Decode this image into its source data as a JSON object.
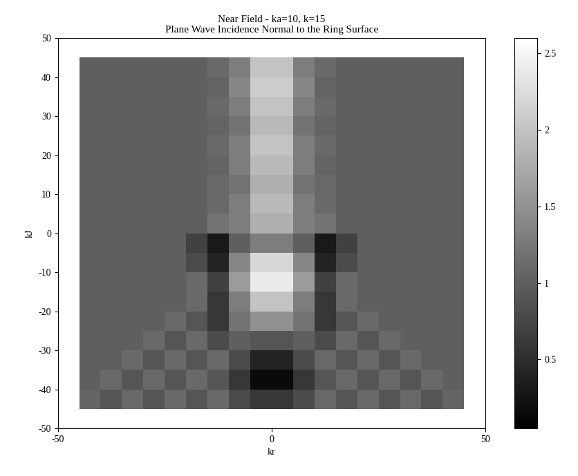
{
  "chart_data": {
    "type": "heatmap",
    "title": "Near Field - ka=10, k=15\nPlane Wave Incidence Normal to the Ring Surface",
    "x_label": "kr",
    "y_label": "kJ",
    "x_edges": [
      -45,
      -40,
      -35,
      -30,
      -25,
      -20,
      -15,
      -10,
      -5,
      0,
      5,
      10,
      15,
      20,
      25,
      30,
      35,
      40,
      45
    ],
    "y_edges": [
      -45,
      -40,
      -35,
      -30,
      -25,
      -20,
      -15,
      -10,
      -5,
      0,
      5,
      10,
      15,
      20,
      25,
      30,
      35,
      40,
      45
    ],
    "cells": [
      [
        1.05,
        0.9,
        1.1,
        0.9,
        1.1,
        0.9,
        1.1,
        0.8,
        0.6,
        0.6,
        0.8,
        1.1,
        0.9,
        1.1,
        0.9,
        1.1,
        0.9,
        1.05
      ],
      [
        1.0,
        1.1,
        0.9,
        1.1,
        0.9,
        1.1,
        0.9,
        0.6,
        0.15,
        0.15,
        0.6,
        0.9,
        1.1,
        0.9,
        1.1,
        0.9,
        1.1,
        1.0
      ],
      [
        1.0,
        1.0,
        1.1,
        0.9,
        1.1,
        0.9,
        1.1,
        0.8,
        0.4,
        0.4,
        0.8,
        1.1,
        0.9,
        1.1,
        0.9,
        1.1,
        1.0,
        1.0
      ],
      [
        1.0,
        1.0,
        1.0,
        1.1,
        0.9,
        1.1,
        0.8,
        1.0,
        0.9,
        0.9,
        1.0,
        0.8,
        1.1,
        0.9,
        1.1,
        1.0,
        1.0,
        1.0
      ],
      [
        1.0,
        1.0,
        1.0,
        1.0,
        1.1,
        0.9,
        0.6,
        1.2,
        1.5,
        1.5,
        1.2,
        0.6,
        0.9,
        1.1,
        1.0,
        1.0,
        1.0,
        1.0
      ],
      [
        1.0,
        1.0,
        1.0,
        1.0,
        1.0,
        1.1,
        0.6,
        1.3,
        2.0,
        2.0,
        1.3,
        0.6,
        1.1,
        1.0,
        1.0,
        1.0,
        1.0,
        1.0
      ],
      [
        1.0,
        1.0,
        1.0,
        1.0,
        1.0,
        1.1,
        0.7,
        1.6,
        2.4,
        2.4,
        1.6,
        0.7,
        1.1,
        1.0,
        1.0,
        1.0,
        1.0,
        1.0
      ],
      [
        1.0,
        1.0,
        1.0,
        1.0,
        1.0,
        0.8,
        0.4,
        1.4,
        2.2,
        2.2,
        1.4,
        0.4,
        0.8,
        1.0,
        1.0,
        1.0,
        1.0,
        1.0
      ],
      [
        1.0,
        1.0,
        1.0,
        1.0,
        1.0,
        0.7,
        0.3,
        1.0,
        1.3,
        1.3,
        1.0,
        0.3,
        0.7,
        1.0,
        1.0,
        1.0,
        1.0,
        1.0
      ],
      [
        1.0,
        1.0,
        1.0,
        1.0,
        1.0,
        1.0,
        1.2,
        1.3,
        1.8,
        1.8,
        1.3,
        1.2,
        1.0,
        1.0,
        1.0,
        1.0,
        1.0,
        1.0
      ],
      [
        1.0,
        1.0,
        1.0,
        1.0,
        1.0,
        1.0,
        1.1,
        1.3,
        1.9,
        1.9,
        1.3,
        1.1,
        1.0,
        1.0,
        1.0,
        1.0,
        1.0,
        1.0
      ],
      [
        1.0,
        1.0,
        1.0,
        1.0,
        1.0,
        1.0,
        1.1,
        1.2,
        1.8,
        1.8,
        1.2,
        1.1,
        1.0,
        1.0,
        1.0,
        1.0,
        1.0,
        1.0
      ],
      [
        1.0,
        1.0,
        1.0,
        1.0,
        1.0,
        1.0,
        1.05,
        1.3,
        1.9,
        1.9,
        1.3,
        1.05,
        1.0,
        1.0,
        1.0,
        1.0,
        1.0,
        1.0
      ],
      [
        1.0,
        1.0,
        1.0,
        1.0,
        1.0,
        1.0,
        1.1,
        1.3,
        2.0,
        2.0,
        1.3,
        1.1,
        1.0,
        1.0,
        1.0,
        1.0,
        1.0,
        1.0
      ],
      [
        1.0,
        1.0,
        1.0,
        1.0,
        1.0,
        1.0,
        1.05,
        1.2,
        1.9,
        1.9,
        1.2,
        1.05,
        1.0,
        1.0,
        1.0,
        1.0,
        1.0,
        1.0
      ],
      [
        1.0,
        1.0,
        1.0,
        1.0,
        1.0,
        1.0,
        1.1,
        1.3,
        2.0,
        2.0,
        1.3,
        1.1,
        1.0,
        1.0,
        1.0,
        1.0,
        1.0,
        1.0
      ],
      [
        1.0,
        1.0,
        1.0,
        1.0,
        1.0,
        1.0,
        1.05,
        1.4,
        2.1,
        2.1,
        1.4,
        1.05,
        1.0,
        1.0,
        1.0,
        1.0,
        1.0,
        1.0
      ],
      [
        1.0,
        1.0,
        1.0,
        1.0,
        1.0,
        1.0,
        1.1,
        1.3,
        2.0,
        2.0,
        1.3,
        1.1,
        1.0,
        1.0,
        1.0,
        1.0,
        1.0,
        1.0
      ]
    ],
    "xlim": [
      -50,
      50
    ],
    "xticks": [
      -50,
      0,
      50
    ],
    "ylim": [
      -50,
      50
    ],
    "yticks": [
      -50,
      -40,
      -30,
      -20,
      -10,
      0,
      10,
      20,
      30,
      40,
      50
    ],
    "colorbar_range": [
      0.05,
      2.6
    ],
    "colorbar_ticks": [
      0.5,
      1,
      1.5,
      2,
      2.5
    ],
    "color": "gray",
    "grid": false
  }
}
